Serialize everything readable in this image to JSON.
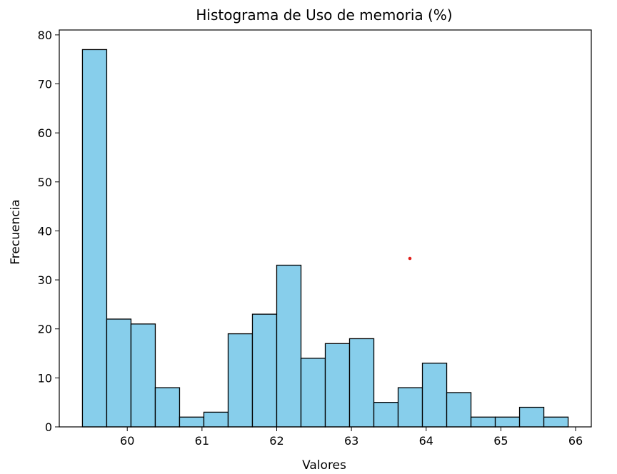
{
  "chart_data": {
    "type": "bar",
    "title": "Histograma de Uso de memoria (%)",
    "xlabel": "Valores",
    "ylabel": "Frecuencia",
    "bin_edges": [
      59.4,
      59.725,
      60.05,
      60.375,
      60.7,
      61.025,
      61.35,
      61.675,
      62.0,
      62.325,
      62.65,
      62.975,
      63.3,
      63.625,
      63.95,
      64.275,
      64.6,
      64.925,
      65.25,
      65.575,
      65.9
    ],
    "values": [
      77,
      22,
      21,
      8,
      2,
      3,
      19,
      23,
      33,
      14,
      17,
      18,
      5,
      8,
      13,
      7,
      2,
      2,
      4,
      2
    ],
    "xlim": [
      59.09,
      66.21
    ],
    "ylim": [
      0,
      81
    ],
    "xticks": [
      "60",
      "61",
      "62",
      "63",
      "64",
      "65",
      "66"
    ],
    "yticks": [
      "0",
      "10",
      "20",
      "30",
      "40",
      "50",
      "60",
      "70",
      "80"
    ],
    "bar_color": "#87ceeb",
    "edge_color": "#000000",
    "grid": false,
    "legend": "none"
  }
}
